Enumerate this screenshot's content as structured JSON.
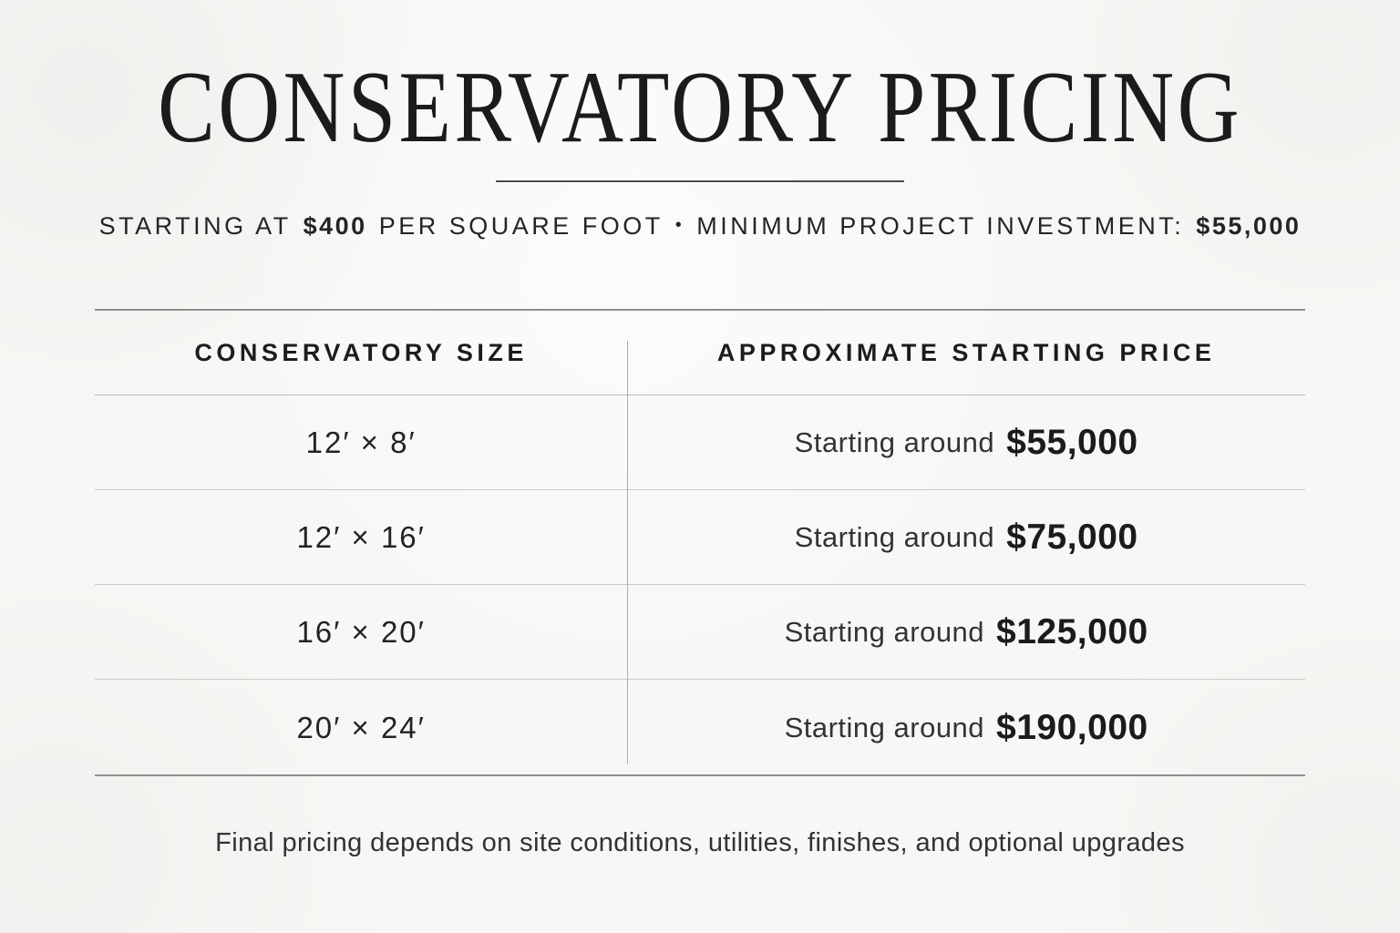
{
  "page": {
    "title": "CONSERVATORY PRICING",
    "footer_note": "Final pricing depends on site conditions, utilities, finishes, and optional upgrades"
  },
  "subtitle": {
    "starting_at": "STARTING AT",
    "price_per_sqft": "$400",
    "per_square_foot": "PER SQUARE FOOT",
    "separator": "•",
    "minimum_label": "MINIMUM PROJECT INVESTMENT:",
    "minimum_value": "$55,000"
  },
  "table": {
    "columns": [
      "CONSERVATORY SIZE",
      "APPROXIMATE STARTING PRICE"
    ],
    "rows": [
      {
        "size": "12′ × 8′",
        "price_prefix": "Starting around",
        "price": "$55,000"
      },
      {
        "size": "12′ × 16′",
        "price_prefix": "Starting around",
        "price": "$75,000"
      },
      {
        "size": "16′ × 20′",
        "price_prefix": "Starting around",
        "price": "$125,000"
      },
      {
        "size": "20′ × 24′",
        "price_prefix": "Starting around",
        "price": "$190,000"
      }
    ]
  },
  "colors": {
    "background": "#f8f7f5",
    "text_primary": "#1b1b1d",
    "text_secondary": "#333335",
    "rule_outer": "#8f8f8f",
    "rule_inner": "#c9c9c9",
    "rule_vertical": "#adadad",
    "title_rule": "#4d4d4d"
  }
}
